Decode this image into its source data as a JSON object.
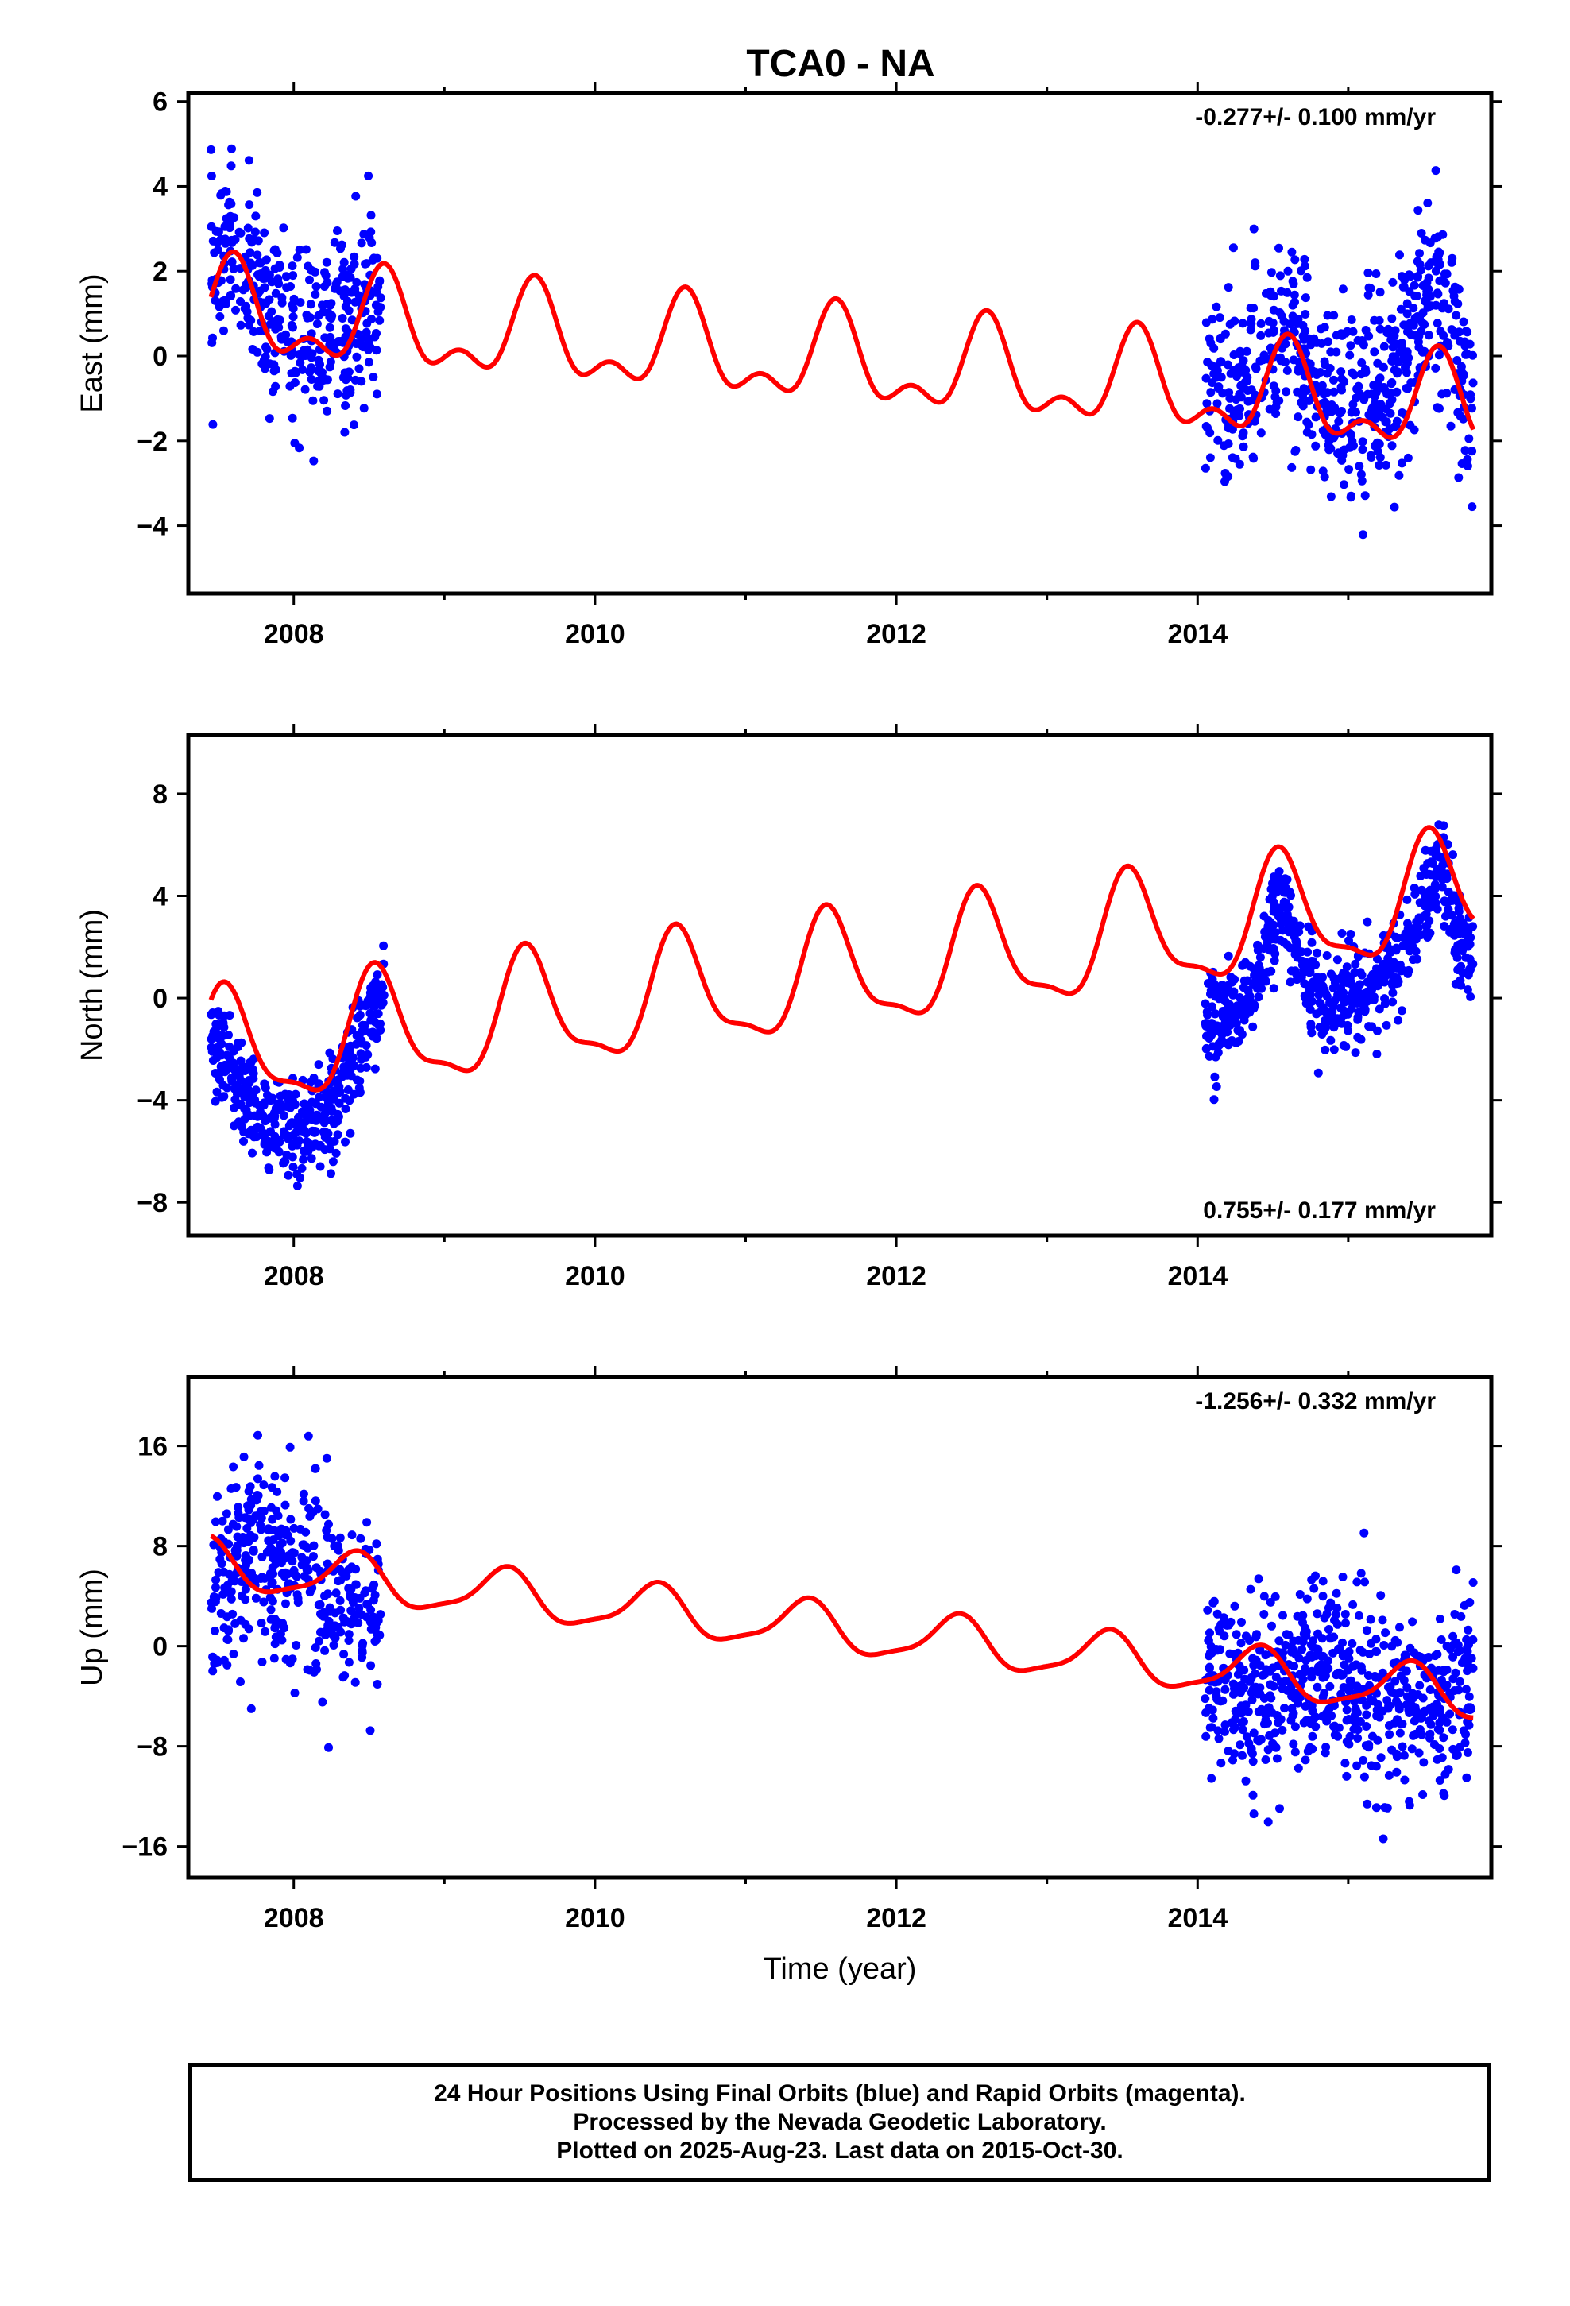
{
  "title": "TCA0 - NA",
  "colors": {
    "data": "#0000ff",
    "model": "#ff0000",
    "frame": "#000000"
  },
  "chart_data": [
    {
      "type": "scatter",
      "ylabel": "East (mm)",
      "xlabel": "",
      "xlim": [
        2007.3,
        2015.95
      ],
      "ylim": [
        -5.6,
        6.2
      ],
      "x_ticks": [
        2008,
        2010,
        2012,
        2014
      ],
      "y_ticks": [
        -4,
        -2,
        0,
        2,
        4,
        6
      ],
      "annotation": "-0.277+/- 0.100 mm/yr",
      "annotation_position": "top-right",
      "series": [
        {
          "kind": "points",
          "segments": [
            {
              "x_range": [
                2007.45,
                2008.58
              ],
              "center_points": [
                [
                  2007.45,
                  2.0
                ],
                [
                  2007.6,
                  2.5
                ],
                [
                  2007.8,
                  1.2
                ],
                [
                  2008.0,
                  0.5
                ],
                [
                  2008.2,
                  0.6
                ],
                [
                  2008.4,
                  0.8
                ],
                [
                  2008.58,
                  1.6
                ]
              ],
              "spread": 1.4,
              "count": 380
            },
            {
              "x_range": [
                2014.05,
                2015.83
              ],
              "center_points": [
                [
                  2014.05,
                  -0.6
                ],
                [
                  2014.3,
                  -1.0
                ],
                [
                  2014.55,
                  0.5
                ],
                [
                  2014.8,
                  -0.9
                ],
                [
                  2015.0,
                  -1.3
                ],
                [
                  2015.3,
                  -0.4
                ],
                [
                  2015.6,
                  1.8
                ],
                [
                  2015.83,
                  -1.3
                ]
              ],
              "spread": 1.5,
              "count": 620
            }
          ]
        },
        {
          "kind": "line",
          "name": "model",
          "trend": {
            "intercept_at_2007.45": 1.0,
            "rate_mm_per_yr": -0.277
          },
          "annual": {
            "amplitude": 0.95,
            "peak_phase": 0.6
          },
          "semiannual": {
            "amplitude": 0.55,
            "peak_phase": 0.1
          },
          "x_range": [
            2007.45,
            2015.83
          ]
        }
      ]
    },
    {
      "type": "scatter",
      "ylabel": "North (mm)",
      "xlabel": "",
      "xlim": [
        2007.3,
        2015.95
      ],
      "ylim": [
        -9.3,
        10.3
      ],
      "x_ticks": [
        2008,
        2010,
        2012,
        2014
      ],
      "y_ticks": [
        -8,
        -4,
        0,
        4,
        8
      ],
      "annotation": "0.755+/- 0.177 mm/yr",
      "annotation_position": "bottom-right",
      "series": [
        {
          "kind": "points",
          "segments": [
            {
              "x_range": [
                2007.45,
                2008.6
              ],
              "center_points": [
                [
                  2007.45,
                  -1.5
                ],
                [
                  2007.6,
                  -3.0
                ],
                [
                  2007.85,
                  -5.5
                ],
                [
                  2008.1,
                  -5.2
                ],
                [
                  2008.3,
                  -4.0
                ],
                [
                  2008.45,
                  -1.5
                ],
                [
                  2008.6,
                  0.0
                ]
              ],
              "spread": 1.3,
              "count": 420
            },
            {
              "x_range": [
                2014.05,
                2015.83
              ],
              "center_points": [
                [
                  2014.05,
                  -0.8
                ],
                [
                  2014.3,
                  -0.5
                ],
                [
                  2014.55,
                  3.5
                ],
                [
                  2014.8,
                  0.0
                ],
                [
                  2015.1,
                  0.2
                ],
                [
                  2015.35,
                  1.5
                ],
                [
                  2015.6,
                  4.8
                ],
                [
                  2015.83,
                  0.8
                ]
              ],
              "spread": 1.3,
              "count": 640
            }
          ]
        },
        {
          "kind": "line",
          "name": "model",
          "trend": {
            "intercept_at_2007.45": -2.3,
            "rate_mm_per_yr": 0.755
          },
          "annual": {
            "amplitude": 2.2,
            "peak_phase": 0.55
          },
          "semiannual": {
            "amplitude": 0.7,
            "peak_phase": 0.02
          },
          "x_range": [
            2007.45,
            2015.83
          ]
        }
      ]
    },
    {
      "type": "scatter",
      "ylabel": "Up (mm)",
      "xlabel": "Time (year)",
      "xlim": [
        2007.3,
        2015.95
      ],
      "ylim": [
        -18.5,
        21.5
      ],
      "x_ticks": [
        2008,
        2010,
        2012,
        2014
      ],
      "y_ticks": [
        -16,
        -8,
        0,
        8,
        16
      ],
      "annotation": "-1.256+/- 0.332 mm/yr",
      "annotation_position": "top-right",
      "series": [
        {
          "kind": "points",
          "segments": [
            {
              "x_range": [
                2007.45,
                2008.58
              ],
              "center_points": [
                [
                  2007.45,
                  5.0
                ],
                [
                  2007.75,
                  8.0
                ],
                [
                  2008.1,
                  5.0
                ],
                [
                  2008.4,
                  3.5
                ],
                [
                  2008.58,
                  3.0
                ]
              ],
              "spread": 5.0,
              "count": 400
            },
            {
              "x_range": [
                2014.05,
                2015.83
              ],
              "center_points": [
                [
                  2014.05,
                  -2.5
                ],
                [
                  2014.4,
                  -4.5
                ],
                [
                  2014.8,
                  -1.5
                ],
                [
                  2015.2,
                  -4.5
                ],
                [
                  2015.5,
                  -5.0
                ],
                [
                  2015.83,
                  -2.5
                ]
              ],
              "spread": 4.8,
              "count": 640
            }
          ]
        },
        {
          "kind": "line",
          "name": "model",
          "trend": {
            "intercept_at_2007.45": 6.5,
            "rate_mm_per_yr": -1.256
          },
          "annual": {
            "amplitude": 1.9,
            "peak_phase": 0.4
          },
          "semiannual": {
            "amplitude": 0.5,
            "peak_phase": 0.95
          },
          "x_range": [
            2007.45,
            2015.83
          ]
        }
      ]
    }
  ],
  "footer": {
    "line1": "24 Hour Positions Using Final Orbits (blue) and Rapid Orbits (magenta).",
    "line2": "Processed by the Nevada Geodetic Laboratory.",
    "line3": "Plotted on 2025-Aug-23. Last data on 2015-Oct-30."
  }
}
